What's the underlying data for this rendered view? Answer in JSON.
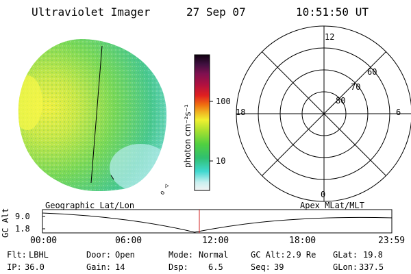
{
  "header": {
    "instrument": "Ultraviolet Imager",
    "date": "27 Sep 07",
    "time": "10:51:50 UT"
  },
  "colorbar": {
    "units": "photon cm⁻²s⁻¹",
    "ticks": [
      "100",
      "10"
    ]
  },
  "polar_plot": {
    "mlt_labels": [
      "12",
      "18",
      "6",
      "0"
    ],
    "lat_labels": [
      "60",
      "70",
      "80"
    ]
  },
  "timeline": {
    "axis_label": "GC Alt",
    "y_ticks": [
      "9.0",
      "1.8"
    ],
    "left_title": "Geographic Lat/Lon",
    "right_title": "Apex MLat/MLT",
    "x_ticks": [
      "00:00",
      "06:00",
      "12:00",
      "18:00",
      "23:59"
    ]
  },
  "status": {
    "filter": {
      "label": "Flt:",
      "value": "LBHL"
    },
    "ip": {
      "label": "IP:",
      "value": "36.0"
    },
    "door": {
      "label": "Door:",
      "value": "Open"
    },
    "gain": {
      "label": "Gain:",
      "value": "14"
    },
    "mode": {
      "label": "Mode:",
      "value": "Normal"
    },
    "dsp": {
      "label": "Dsp:",
      "value": "6.5"
    },
    "gc_alt": {
      "label": "GC Alt:",
      "value": "2.9 Re"
    },
    "seq": {
      "label": "Seq:",
      "value": "39"
    },
    "glat": {
      "label": "GLat:",
      "value": "19.8"
    },
    "glon": {
      "label": "GLon:",
      "value": "337.5"
    }
  }
}
